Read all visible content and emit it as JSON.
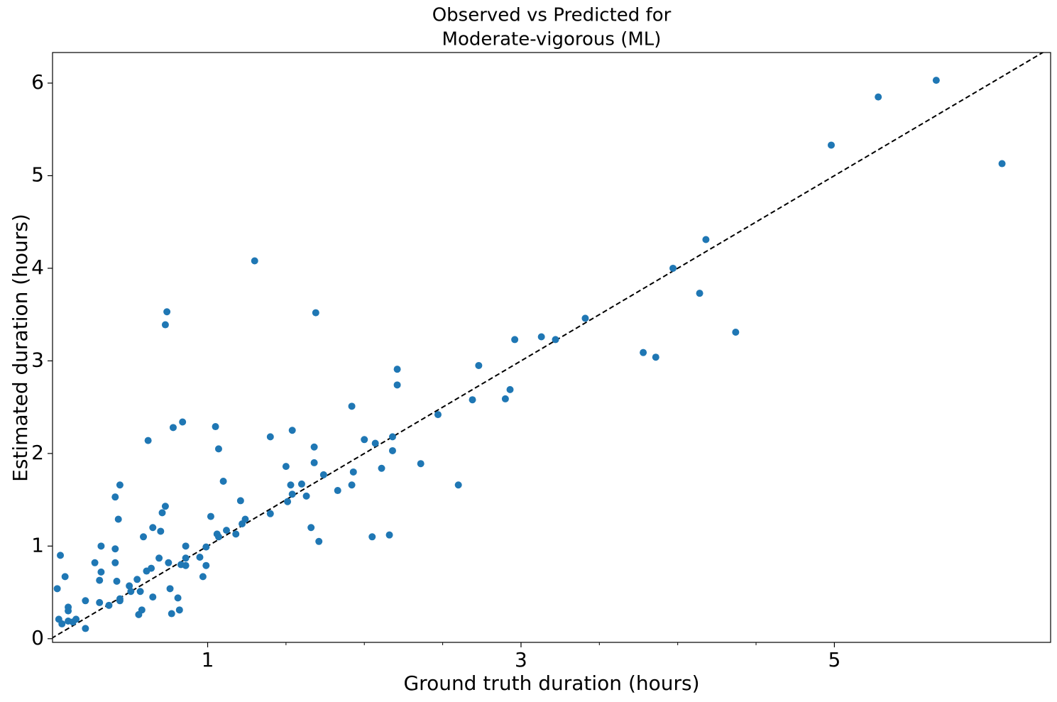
{
  "chart_data": {
    "type": "scatter",
    "title": [
      "Observed vs Predicted for",
      "Moderate-vigorous (ML)"
    ],
    "x_label": "Ground truth duration (hours)",
    "y_label": "Estimated duration (hours)",
    "color": "#1f77b4",
    "diagonal": true,
    "xlim": [
      0.01,
      6.38
    ],
    "ylim": [
      -0.04,
      6.33
    ],
    "xticks": [
      1,
      3,
      5
    ],
    "xminorticks": [
      1.5,
      2,
      2.5,
      3.5,
      4,
      4.5
    ],
    "yticks": [
      0,
      1,
      2,
      3,
      4,
      5,
      6
    ],
    "x": [
      0.04,
      0.05,
      0.06,
      0.07,
      0.09,
      0.11,
      0.11,
      0.11,
      0.14,
      0.16,
      0.22,
      0.22,
      0.28,
      0.31,
      0.31,
      0.32,
      0.32,
      0.37,
      0.41,
      0.41,
      0.41,
      0.42,
      0.43,
      0.44,
      0.44,
      0.44,
      0.5,
      0.51,
      0.55,
      0.56,
      0.57,
      0.58,
      0.59,
      0.61,
      0.62,
      0.64,
      0.65,
      0.65,
      0.69,
      0.7,
      0.71,
      0.73,
      0.73,
      0.74,
      0.75,
      0.76,
      0.77,
      0.78,
      0.81,
      0.82,
      0.83,
      0.84,
      0.86,
      0.86,
      0.86,
      0.95,
      0.97,
      0.99,
      0.99,
      1.02,
      1.05,
      1.06,
      1.07,
      1.07,
      1.1,
      1.12,
      1.18,
      1.21,
      1.22,
      1.24,
      1.3,
      1.4,
      1.4,
      1.5,
      1.51,
      1.53,
      1.54,
      1.54,
      1.6,
      1.63,
      1.66,
      1.68,
      1.68,
      1.69,
      1.71,
      1.74,
      1.83,
      1.92,
      1.92,
      1.93,
      2.0,
      2.05,
      2.07,
      2.11,
      2.16,
      2.18,
      2.18,
      2.21,
      2.21,
      2.36,
      2.47,
      2.6,
      2.69,
      2.73,
      2.9,
      2.93,
      2.96,
      3.13,
      3.22,
      3.41,
      3.78,
      3.86,
      3.97,
      4.14,
      4.18,
      4.37,
      4.98,
      5.28,
      5.65,
      6.07
    ],
    "values": [
      0.54,
      0.21,
      0.9,
      0.16,
      0.67,
      0.3,
      0.34,
      0.19,
      0.18,
      0.21,
      0.11,
      0.41,
      0.82,
      0.39,
      0.63,
      1.0,
      0.72,
      0.36,
      1.53,
      0.97,
      0.82,
      0.62,
      1.29,
      1.66,
      0.41,
      0.43,
      0.57,
      0.51,
      0.64,
      0.26,
      0.51,
      0.31,
      1.1,
      0.73,
      2.14,
      0.76,
      1.2,
      0.45,
      0.87,
      1.16,
      1.36,
      3.39,
      1.43,
      3.53,
      0.82,
      0.54,
      0.27,
      2.28,
      0.44,
      0.31,
      0.8,
      2.34,
      0.79,
      0.87,
      1.0,
      0.88,
      0.67,
      0.79,
      0.99,
      1.32,
      2.29,
      1.13,
      1.1,
      2.05,
      1.7,
      1.17,
      1.13,
      1.49,
      1.24,
      1.29,
      4.08,
      2.18,
      1.35,
      1.86,
      1.48,
      1.66,
      2.25,
      1.56,
      1.67,
      1.54,
      1.2,
      2.07,
      1.9,
      3.52,
      1.05,
      1.77,
      1.6,
      2.51,
      1.66,
      1.8,
      2.15,
      1.1,
      2.11,
      1.84,
      1.12,
      2.18,
      2.03,
      2.91,
      2.74,
      1.89,
      2.42,
      1.66,
      2.58,
      2.95,
      2.59,
      2.69,
      3.23,
      3.26,
      3.23,
      3.46,
      3.09,
      3.04,
      4.0,
      3.73,
      4.31,
      3.31,
      5.33,
      5.85,
      6.03,
      5.13
    ]
  }
}
